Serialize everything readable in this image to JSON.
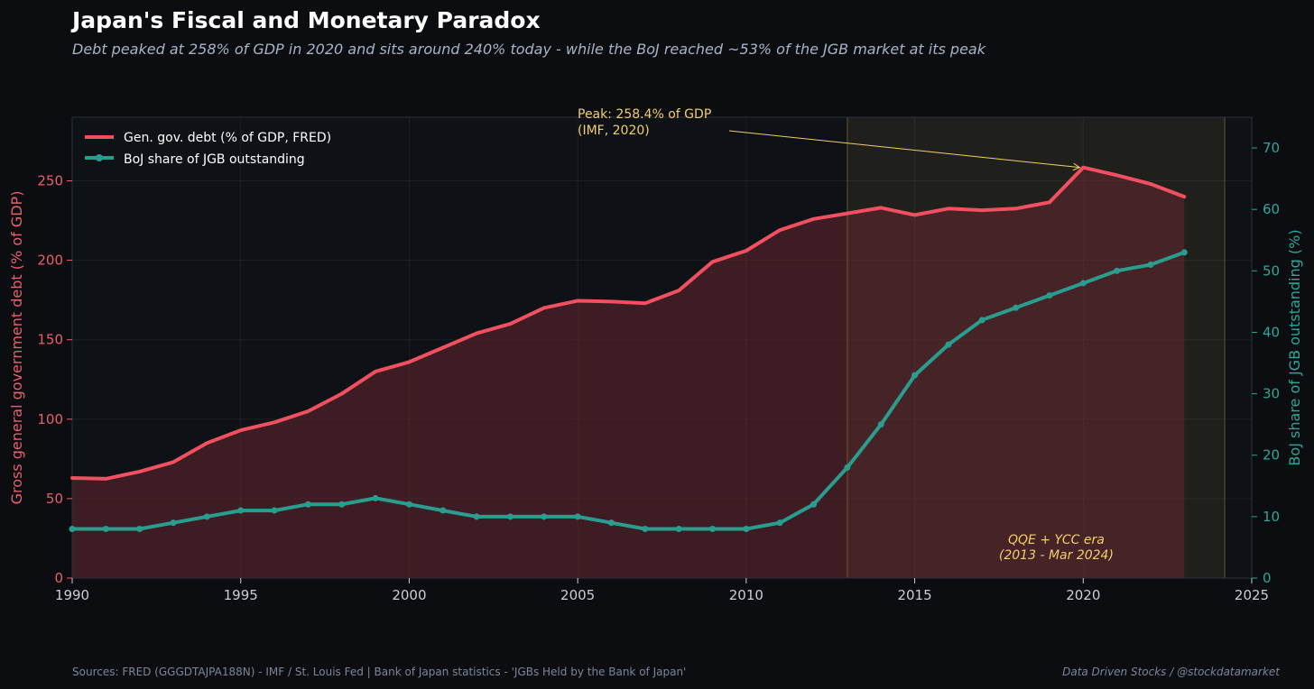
{
  "header": {
    "title": "Japan's Fiscal and Monetary Paradox",
    "subtitle": "Debt peaked at 258% of GDP in 2020 and sits around 240% today  -  while the BoJ reached ~53% of the JGB market at its peak"
  },
  "footer": {
    "sources": "Sources: FRED (GGGDTAJPA188N) - IMF / St. Louis Fed  |  Bank of Japan statistics - 'JGBs Held by the Bank of Japan'",
    "credit": "Data Driven Stocks / @stockdatamarket"
  },
  "colors": {
    "background": "#0b0d11",
    "plot_background": "#0e1216",
    "debt_line": "#f0505f",
    "debt_fill": "#3a1a22",
    "boj_line": "#2a9d8f",
    "annotation": "#f2cf6a",
    "era_band": "#f2cf6a"
  },
  "chart_data": {
    "type": "line",
    "title": "Japan's Fiscal and Monetary Paradox",
    "x": [
      1990,
      1991,
      1992,
      1993,
      1994,
      1995,
      1996,
      1997,
      1998,
      1999,
      2000,
      2001,
      2002,
      2003,
      2004,
      2005,
      2006,
      2007,
      2008,
      2009,
      2010,
      2011,
      2012,
      2013,
      2014,
      2015,
      2016,
      2017,
      2018,
      2019,
      2020,
      2021,
      2022,
      2023
    ],
    "xlim": [
      1990,
      2025
    ],
    "xticks": [
      1990,
      1995,
      2000,
      2005,
      2010,
      2015,
      2020,
      2025
    ],
    "ylabel": "Gross general government debt (% of GDP)",
    "ylim": [
      0,
      290
    ],
    "yticks": [
      0,
      50,
      100,
      150,
      200,
      250
    ],
    "y2label": "BoJ share of JGB outstanding (%)",
    "y2lim": [
      0,
      75
    ],
    "y2ticks": [
      0,
      10,
      20,
      30,
      40,
      50,
      60,
      70
    ],
    "grid": true,
    "legend_position": "top-left",
    "series": [
      {
        "name": "Gen. gov. debt (% of GDP, FRED)",
        "axis": "left",
        "filled": true,
        "values": [
          63,
          62.5,
          67,
          73,
          85,
          93,
          98,
          105,
          116,
          130,
          136,
          145,
          154,
          160,
          170,
          174.5,
          174,
          173,
          181,
          199,
          206,
          219,
          226,
          229.5,
          233,
          228.5,
          232.5,
          231.5,
          232.5,
          236.5,
          258.4,
          253.5,
          248,
          240
        ]
      },
      {
        "name": "BoJ share of JGB outstanding",
        "axis": "right",
        "markers": true,
        "values": [
          8,
          8,
          8,
          9,
          10,
          11,
          11,
          12,
          12,
          13,
          12,
          11,
          10,
          10,
          10,
          10,
          9,
          8,
          8,
          8,
          8,
          9,
          12,
          18,
          25,
          33,
          38,
          42,
          44,
          46,
          48,
          50,
          51,
          53
        ]
      }
    ],
    "annotations": [
      {
        "id": "peak",
        "line1": "Peak: 258.4% of GDP",
        "line2": "(IMF, 2020)",
        "x": 2020,
        "y": 258.4
      },
      {
        "id": "era",
        "line1": "QQE  +  YCC era",
        "line2": "(2013 - Mar 2024)",
        "x_start": 2013,
        "x_end": 2024.2
      }
    ]
  }
}
